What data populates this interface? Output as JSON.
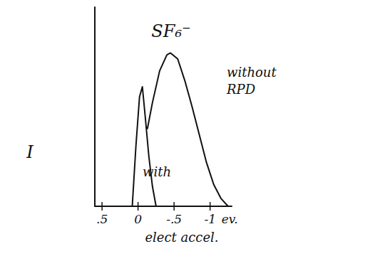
{
  "chart_data": {
    "type": "line",
    "title": "SF₆⁻",
    "x_label": "elect accel.",
    "y_label": "I",
    "annotations": [
      "ev."
    ],
    "series": [
      {
        "name": "without RPD",
        "color": "#111111",
        "line_style": "solid",
        "x": [
          -0.13,
          -0.2,
          -0.3,
          -0.4,
          -0.45,
          -0.55,
          -0.65,
          -0.75,
          -0.85,
          -0.95,
          -1.05,
          -1.15,
          -1.25
        ],
        "values": [
          0.39,
          0.52,
          0.68,
          0.76,
          0.77,
          0.74,
          0.63,
          0.5,
          0.36,
          0.22,
          0.11,
          0.04,
          0
        ]
      },
      {
        "name": "with",
        "color": "#111111",
        "line_style": "solid",
        "x": [
          0.08,
          0.03,
          -0.02,
          -0.06,
          -0.1,
          -0.15,
          -0.2,
          -0.25
        ],
        "values": [
          0,
          0.3,
          0.55,
          0.6,
          0.45,
          0.25,
          0.1,
          0
        ]
      }
    ],
    "xlim": [
      0.6,
      -1.3
    ],
    "xticks": [
      {
        "value": 0.5,
        "label": ".5"
      },
      0,
      {
        "value": -0.5,
        "label": "-.5"
      },
      -1
    ],
    "ylim": [
      0,
      1
    ],
    "tick_labels": "x"
  }
}
